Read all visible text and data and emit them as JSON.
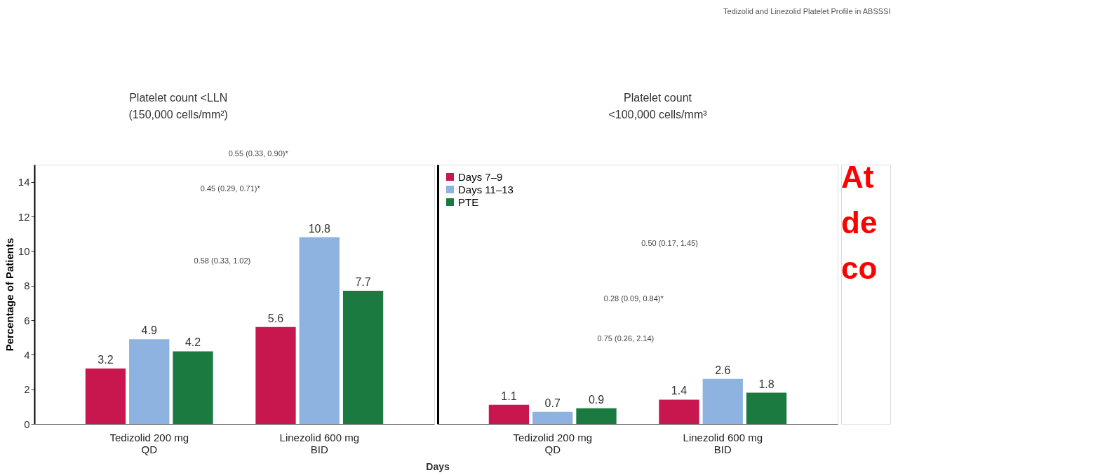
{
  "chart_data": [
    {
      "type": "bar",
      "title": [
        "Platelet count <LLN",
        "(150,000 cells/mm²)"
      ],
      "ylabel": "Percentage of Patients",
      "categories": [
        "Tedizolid 200 mg\nQD",
        "Linezolid 600 mg\nBID"
      ],
      "series": [
        {
          "color": "#c8174f",
          "values": [
            3.2,
            5.6
          ]
        },
        {
          "color": "#8fb3e0",
          "values": [
            4.9,
            10.8
          ]
        },
        {
          "color": "#1a7a40",
          "values": [
            4.2,
            7.7
          ]
        }
      ],
      "ylim": [
        0,
        15
      ],
      "yticks": [
        0,
        2,
        4,
        6,
        8,
        10,
        12,
        14
      ],
      "data_labels": true,
      "annotations": [
        "Tedizolid and Linezolid Platelet Profile in ABSSSI",
        "0.55 (0.33, 0.90)*",
        "0.45 (0.29, 0.71)*",
        "0.58 (0.33, 1.02)"
      ]
    },
    {
      "type": "bar",
      "title": [
        "Platelet count",
        "<100,000 cells/mm³"
      ],
      "xlabel": "Days",
      "categories": [
        "Tedizolid 200 mg\nQD",
        "Linezolid 600 mg\nBID"
      ],
      "series": [
        {
          "name": "Days 7–9",
          "color": "#c8174f",
          "values": [
            1.1,
            1.4
          ]
        },
        {
          "name": "Days 11–13",
          "color": "#8fb3e0",
          "values": [
            0.7,
            2.6
          ]
        },
        {
          "name": "PTE",
          "color": "#1a7a40",
          "values": [
            0.9,
            1.8
          ]
        }
      ],
      "ylim": [
        0,
        15
      ],
      "tick_labels": "x",
      "data_labels": true,
      "legend": "top left",
      "annotations": [
        "0.50 (0.17, 1.45)",
        "0.28 (0.09, 0.84)*",
        "0.75 (0.26, 2.14)",
        "At",
        "de",
        "co"
      ]
    }
  ]
}
